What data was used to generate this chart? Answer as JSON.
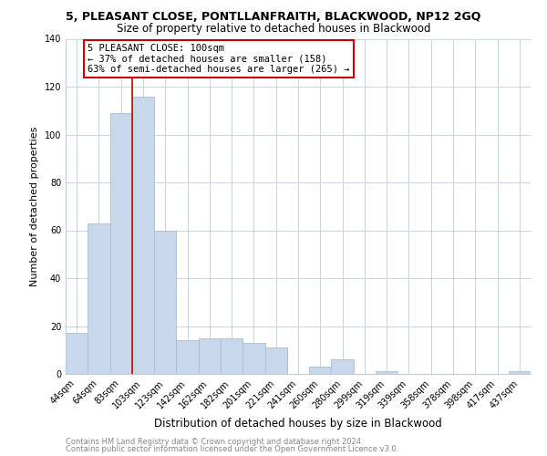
{
  "title": "5, PLEASANT CLOSE, PONTLLANFRAITH, BLACKWOOD, NP12 2GQ",
  "subtitle": "Size of property relative to detached houses in Blackwood",
  "xlabel": "Distribution of detached houses by size in Blackwood",
  "ylabel": "Number of detached properties",
  "footnote1": "Contains HM Land Registry data © Crown copyright and database right 2024.",
  "footnote2": "Contains public sector information licensed under the Open Government Licence v3.0.",
  "bar_labels": [
    "44sqm",
    "64sqm",
    "83sqm",
    "103sqm",
    "123sqm",
    "142sqm",
    "162sqm",
    "182sqm",
    "201sqm",
    "221sqm",
    "241sqm",
    "260sqm",
    "280sqm",
    "299sqm",
    "319sqm",
    "339sqm",
    "358sqm",
    "378sqm",
    "398sqm",
    "417sqm",
    "437sqm"
  ],
  "bar_values": [
    17,
    63,
    109,
    116,
    60,
    14,
    15,
    15,
    13,
    11,
    0,
    3,
    6,
    0,
    1,
    0,
    0,
    0,
    0,
    0,
    1
  ],
  "bar_color": "#c8d8ea",
  "bar_edge_color": "#a8bfd0",
  "highlight_bar_idx": 3,
  "highlight_color": "#cc0000",
  "ylim": [
    0,
    140
  ],
  "yticks": [
    0,
    20,
    40,
    60,
    80,
    100,
    120,
    140
  ],
  "annotation_title": "5 PLEASANT CLOSE: 100sqm",
  "annotation_line1": "← 37% of detached houses are smaller (158)",
  "annotation_line2": "63% of semi-detached houses are larger (265) →",
  "annotation_box_edge": "#cc0000",
  "background_color": "#ffffff",
  "grid_color": "#c8d4e0",
  "title_fontsize": 9,
  "subtitle_fontsize": 8.5,
  "xlabel_fontsize": 8.5,
  "ylabel_fontsize": 8,
  "tick_fontsize": 7,
  "annotation_fontsize": 7.5,
  "footnote_fontsize": 6
}
